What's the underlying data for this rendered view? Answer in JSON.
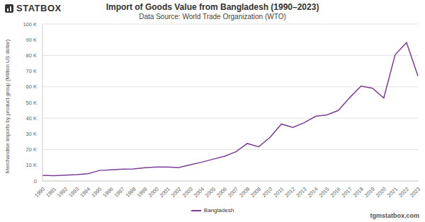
{
  "chart_data": {
    "type": "line",
    "title": "Import of Goods Value from Bangladesh (1990–2023)",
    "subtitle": "Data Source: World Trade Organization (WTO)",
    "logo": "STATBOX",
    "footer": "tgmstatbox.com",
    "y_label": "Merchandise imports by product group (Million US dollar)",
    "categories": [
      "1990",
      "1991",
      "1992",
      "1993",
      "1994",
      "1995",
      "1996",
      "1997",
      "1998",
      "1999",
      "2000",
      "2001",
      "2002",
      "2003",
      "2004",
      "2005",
      "2006",
      "2007",
      "2008",
      "2009",
      "2010",
      "2011",
      "2012",
      "2013",
      "2014",
      "2015",
      "2016",
      "2017",
      "2018",
      "2019",
      "2020",
      "2021",
      "2022",
      "2023"
    ],
    "series": [
      {
        "name": "Bangladesh",
        "color": "#7d3c98",
        "values": [
          3600,
          3400,
          3700,
          4000,
          4600,
          6700,
          7100,
          7500,
          7700,
          8400,
          8900,
          8900,
          8600,
          10400,
          12000,
          13900,
          15800,
          18600,
          23900,
          21800,
          27800,
          36300,
          34100,
          37100,
          41200,
          42100,
          44900,
          53100,
          60500,
          59100,
          52900,
          80500,
          88200,
          66900
        ]
      }
    ],
    "ylim": [
      0,
      100000
    ],
    "yticks": [
      0,
      {
        "value": 10000,
        "label": "10 K"
      },
      {
        "value": 20000,
        "label": "20 K"
      },
      {
        "value": 30000,
        "label": "30 K"
      },
      {
        "value": 40000,
        "label": "40 K"
      },
      {
        "value": 50000,
        "label": "50 K"
      },
      {
        "value": 60000,
        "label": "60 K"
      },
      {
        "value": 70000,
        "label": "70 K"
      },
      {
        "value": 80000,
        "label": "80 K"
      },
      {
        "value": 90000,
        "label": "90 K"
      },
      {
        "value": 100000,
        "label": "100 K"
      }
    ],
    "grid": true,
    "legend": "bottom"
  }
}
